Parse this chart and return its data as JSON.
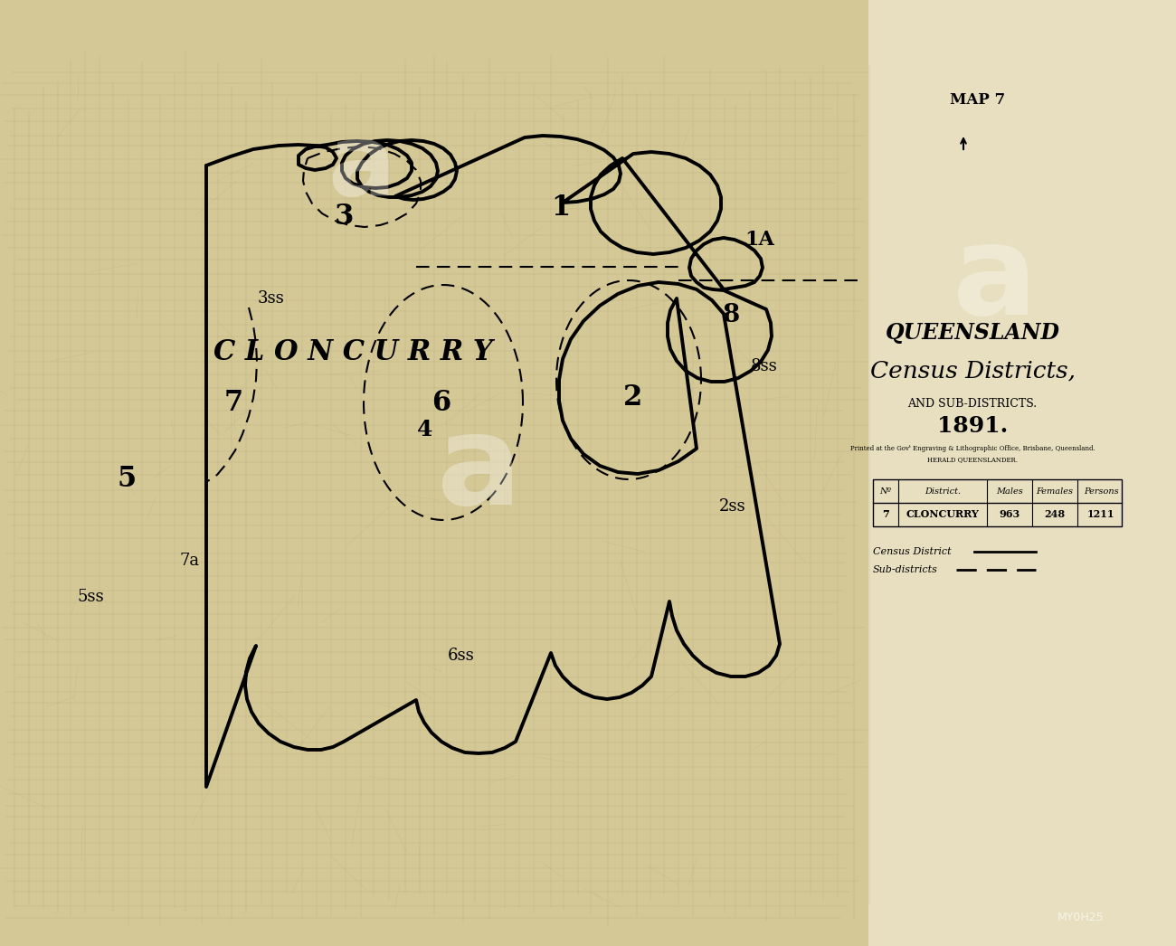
{
  "bg_color": "#e8dfc0",
  "paper_color": "#e8dfc0",
  "map_paper_color": "#d4c896",
  "line_color": "#1a1a1a",
  "title_line1": "QUEENSLAND",
  "title_line2": "Census Districts,",
  "title_line3": "AND SUB-DISTRICTS.",
  "title_line4": "1891.",
  "subtitle": "Printed at the Govᵗ Engraving & Lithographic Office, Brisbane, Queensland.",
  "subtitle2": "HERALD QUEENSLANDER.",
  "map_label": "MAP 7",
  "table_headers": [
    "Nº",
    "District.",
    "Males",
    "Females",
    "Persons"
  ],
  "table_row": [
    "7",
    "CLONCURRY",
    "963",
    "248",
    "1211"
  ],
  "district_label": "C L O N C U R R Y",
  "watermark": "a",
  "grid_color": "#9a8e6a",
  "black": "#000000",
  "white": "#ffffff"
}
